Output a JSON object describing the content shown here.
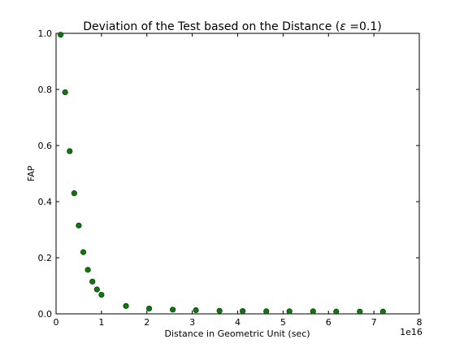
{
  "chart_data": {
    "type": "scatter",
    "title": "Deviation of the Test based on the Distance (",
    "title_symbol": "ε",
    "title_rest": " =0.1)",
    "xlabel": "Distance in Geometric Unit (sec)",
    "ylabel": "FAP",
    "x_offset_label": "1e16",
    "xlim": [
      0,
      8
    ],
    "ylim": [
      0.0,
      1.0
    ],
    "x_ticks": [
      0,
      1,
      2,
      3,
      4,
      5,
      6,
      7,
      8
    ],
    "x_tick_labels": [
      "0",
      "1",
      "2",
      "3",
      "4",
      "5",
      "6",
      "7",
      "8"
    ],
    "y_ticks": [
      0.0,
      0.2,
      0.4,
      0.6,
      0.8,
      1.0
    ],
    "y_tick_labels": [
      "0.0",
      "0.2",
      "0.4",
      "0.6",
      "0.8",
      "1.0"
    ],
    "grid": false,
    "marker_color": "#0b7a0b",
    "marker_edge_color": "#1a3d1a",
    "points": [
      {
        "x": 0.1,
        "y": 0.995
      },
      {
        "x": 0.2,
        "y": 0.79
      },
      {
        "x": 0.3,
        "y": 0.58
      },
      {
        "x": 0.4,
        "y": 0.43
      },
      {
        "x": 0.5,
        "y": 0.315
      },
      {
        "x": 0.6,
        "y": 0.22
      },
      {
        "x": 0.7,
        "y": 0.157
      },
      {
        "x": 0.8,
        "y": 0.115
      },
      {
        "x": 0.9,
        "y": 0.087
      },
      {
        "x": 1.0,
        "y": 0.068
      },
      {
        "x": 1.54,
        "y": 0.028
      },
      {
        "x": 2.05,
        "y": 0.019
      },
      {
        "x": 2.57,
        "y": 0.015
      },
      {
        "x": 3.08,
        "y": 0.013
      },
      {
        "x": 3.6,
        "y": 0.011
      },
      {
        "x": 4.11,
        "y": 0.01
      },
      {
        "x": 4.63,
        "y": 0.009
      },
      {
        "x": 5.14,
        "y": 0.009
      },
      {
        "x": 5.66,
        "y": 0.009
      },
      {
        "x": 6.17,
        "y": 0.008
      },
      {
        "x": 6.69,
        "y": 0.008
      },
      {
        "x": 7.2,
        "y": 0.008
      }
    ]
  }
}
